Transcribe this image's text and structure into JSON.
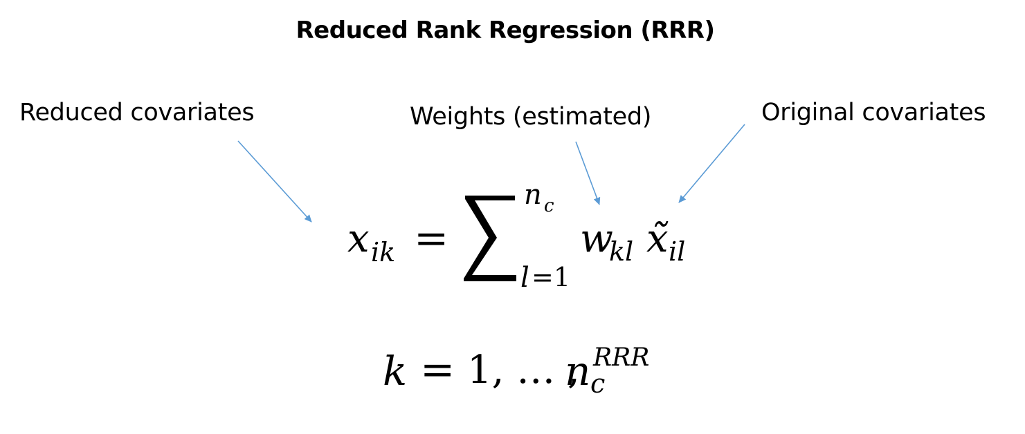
{
  "title": "Reduced Rank Regression (RRR)",
  "labels": {
    "reduced": "Reduced covariates",
    "weights": "Weights (estimated)",
    "original": "Original covariates"
  },
  "colors": {
    "arrow": "#5b9bd5",
    "text": "#000000",
    "background": "#ffffff"
  },
  "equation1": {
    "lhs_var": "x",
    "lhs_sub": "ik",
    "equals": "=",
    "sum_upper_var": "n",
    "sum_upper_sub": "c",
    "sum_lower_var": "l",
    "sum_lower_rest": "=1",
    "w_var": "w",
    "w_sub": "kl",
    "xt_var": "x̃",
    "xt_sub": "il"
  },
  "equation2": {
    "k": "k",
    "eq": "=",
    "range": "1, … ,",
    "n": "n",
    "n_sub": "c",
    "n_sup": "RRR"
  }
}
